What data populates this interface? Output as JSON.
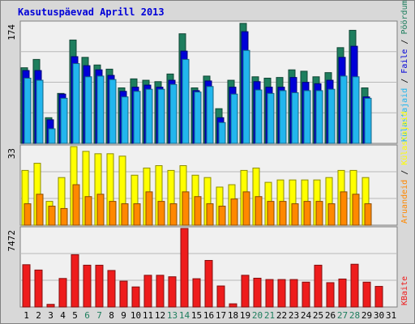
{
  "chart_data": {
    "type": "bar",
    "title": "Kasutuspäevad Aprill 2013",
    "categories": [
      "1",
      "2",
      "3",
      "4",
      "5",
      "6",
      "7",
      "8",
      "9",
      "10",
      "11",
      "12",
      "13",
      "14",
      "15",
      "16",
      "17",
      "18",
      "19",
      "20",
      "21",
      "22",
      "23",
      "24",
      "25",
      "26",
      "27",
      "28",
      "29",
      "30",
      "31"
    ],
    "weekend_days": [
      "6",
      "7",
      "13",
      "14",
      "20",
      "21",
      "27",
      "28"
    ],
    "panels": [
      {
        "id": "top",
        "max_label": "174",
        "ylim": [
          0,
          174
        ],
        "ylabel": [
          "Külastajaid",
          "Faile",
          "Pöördumisi"
        ],
        "series": [
          {
            "name": "Pöördumisi",
            "color": "#1e7e5e",
            "values": [
              109,
              121,
              37,
              72,
              149,
              124,
              113,
              107,
              80,
              93,
              91,
              89,
              100,
              158,
              80,
              97,
              50,
              91,
              173,
              96,
              94,
              95,
              106,
              104,
              96,
              102,
              138,
              163,
              80
            ]
          },
          {
            "name": "Faile",
            "color": "#0000d8",
            "values": [
              105,
              105,
              34,
              71,
              125,
              112,
              106,
              98,
              75,
              81,
              84,
              81,
              91,
              133,
              76,
              90,
              37,
              81,
              161,
              89,
              81,
              81,
              95,
              88,
              86,
              91,
              124,
              140,
              67
            ]
          },
          {
            "name": "Külastajaid",
            "color": "#22b6ee",
            "values": [
              94,
              91,
              21,
              65,
              115,
              96,
              97,
              92,
              67,
              75,
              78,
              78,
              85,
              121,
              74,
              82,
              30,
              71,
              134,
              77,
              72,
              76,
              73,
              76,
              76,
              78,
              97,
              96,
              65
            ]
          }
        ]
      },
      {
        "id": "middle",
        "max_label": "33",
        "ylim": [
          0,
          33
        ],
        "ylabel": [
          "Aruandeid",
          "Külastajaid"
        ],
        "series": [
          {
            "name": "Külastajaid",
            "color": "#ffff00",
            "values": [
              23,
              26,
              10,
              20,
              33,
              31,
              30,
              30,
              29,
              21,
              24,
              25,
              23,
              25,
              21,
              20,
              16,
              17,
              23,
              24,
              18,
              19,
              19,
              19,
              19,
              20,
              23,
              23,
              20
            ]
          },
          {
            "name": "Aruandeid",
            "color": "#ff8800",
            "values": [
              9,
              13,
              8,
              7,
              17,
              12,
              13,
              10,
              9,
              9,
              14,
              10,
              9,
              14,
              12,
              9,
              8,
              11,
              14,
              12,
              10,
              10,
              9,
              10,
              10,
              9,
              14,
              13,
              9
            ]
          }
        ]
      },
      {
        "id": "bottom",
        "max_label": "7472",
        "ylim": [
          0,
          7472
        ],
        "ylabel": [
          "KBaite"
        ],
        "series": [
          {
            "name": "KBaite",
            "color": "#ee1c1c",
            "values": [
              4021,
              3515,
              251,
              2713,
              4975,
              3975,
              3974,
              3472,
              2459,
              1909,
              3016,
              3017,
              2874,
              7472,
              2689,
              4428,
              1999,
              302,
              3016,
              2738,
              2612,
              2612,
              2612,
              2365,
              3975,
              2315,
              2661,
              4066,
              2364,
              1959
            ]
          }
        ]
      }
    ]
  },
  "colors": {
    "background": "#d8d8d8",
    "plot_bg": "#f0f0f0",
    "title": "#0000d8",
    "weekend_label": "#1e7e5e",
    "weekday_label": "#000000",
    "grid": "#b8b8b8"
  }
}
